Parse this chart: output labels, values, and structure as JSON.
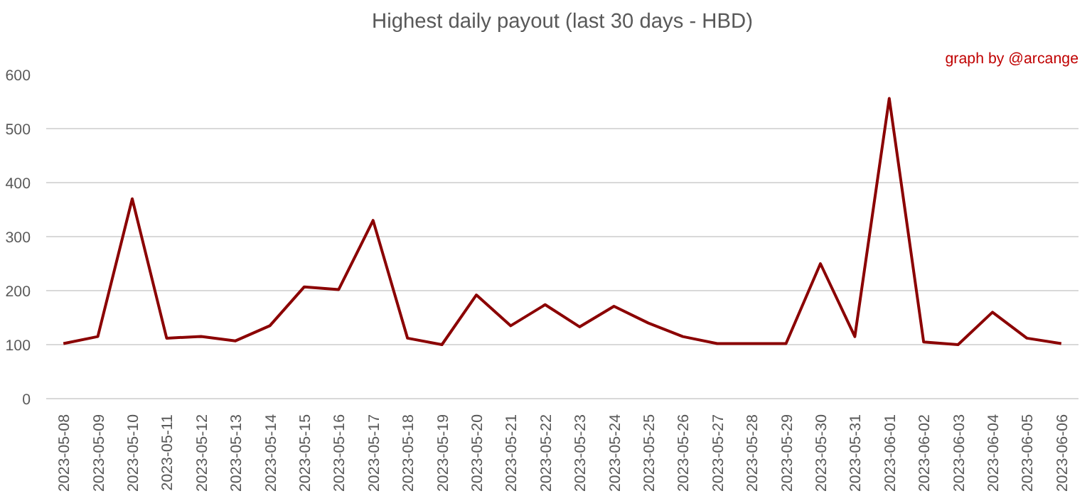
{
  "chart_data": {
    "type": "line",
    "title": "Highest daily payout (last 30 days - HBD)",
    "annotations": [
      "graph by @arcange"
    ],
    "categories": [
      "2023-05-08",
      "2023-05-09",
      "2023-05-10",
      "2023-05-11",
      "2023-05-12",
      "2023-05-13",
      "2023-05-14",
      "2023-05-15",
      "2023-05-16",
      "2023-05-17",
      "2023-05-18",
      "2023-05-19",
      "2023-05-20",
      "2023-05-21",
      "2023-05-22",
      "2023-05-23",
      "2023-05-24",
      "2023-05-25",
      "2023-05-26",
      "2023-05-27",
      "2023-05-28",
      "2023-05-29",
      "2023-05-30",
      "2023-05-31",
      "2023-06-01",
      "2023-06-02",
      "2023-06-03",
      "2023-06-04",
      "2023-06-05",
      "2023-06-06"
    ],
    "series": [
      {
        "color": "#8b0000",
        "values": [
          102,
          115,
          370,
          112,
          115,
          107,
          135,
          207,
          202,
          330,
          112,
          100,
          192,
          135,
          174,
          133,
          171,
          140,
          115,
          102,
          102,
          102,
          250,
          115,
          556,
          105,
          100,
          160,
          112,
          102
        ]
      }
    ],
    "ylim": [
      0,
      600
    ],
    "yticks": [
      0,
      100,
      200,
      300,
      400,
      500,
      600
    ],
    "grid": "y",
    "marker": "none",
    "line_style": "solid"
  }
}
